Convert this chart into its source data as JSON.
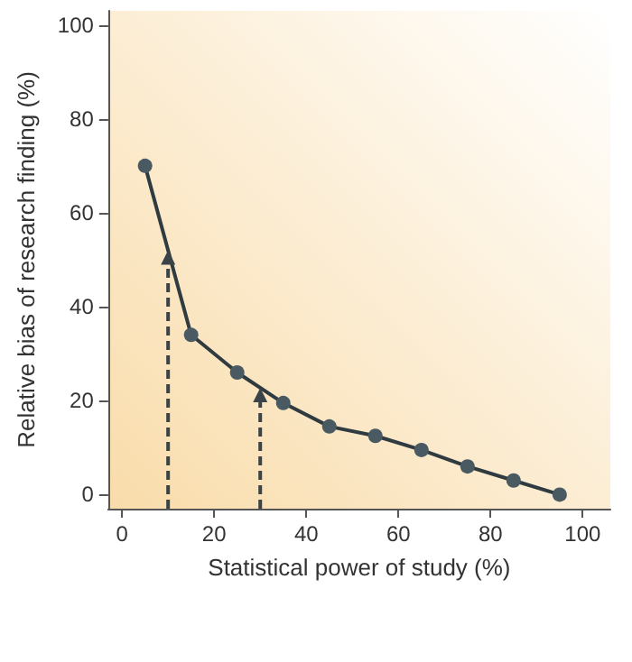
{
  "chart_data": {
    "type": "line",
    "xlabel": "Statistical power of study (%)",
    "ylabel": "Relative bias of research finding (%)",
    "x": [
      5,
      15,
      25,
      35,
      45,
      55,
      65,
      75,
      85,
      95
    ],
    "series": [
      {
        "color": "#4a5a62",
        "values": [
          70,
          34,
          26,
          19.5,
          14.5,
          12.5,
          9.5,
          6,
          3,
          0
        ]
      }
    ],
    "xlim": [
      -3,
      106
    ],
    "xticks": [
      0,
      20,
      40,
      60,
      80,
      100
    ],
    "ylim": [
      -3,
      103
    ],
    "yticks": [
      0,
      20,
      40,
      60,
      80,
      100
    ],
    "ref_lines": [
      {
        "axis": "x",
        "value": 10,
        "color": "#3a4448",
        "line_style": "dashed"
      },
      {
        "axis": "x",
        "value": 30,
        "color": "#3a4448",
        "line_style": "dashed"
      }
    ],
    "grid": false,
    "marker": "circle",
    "line_style": "solid"
  }
}
